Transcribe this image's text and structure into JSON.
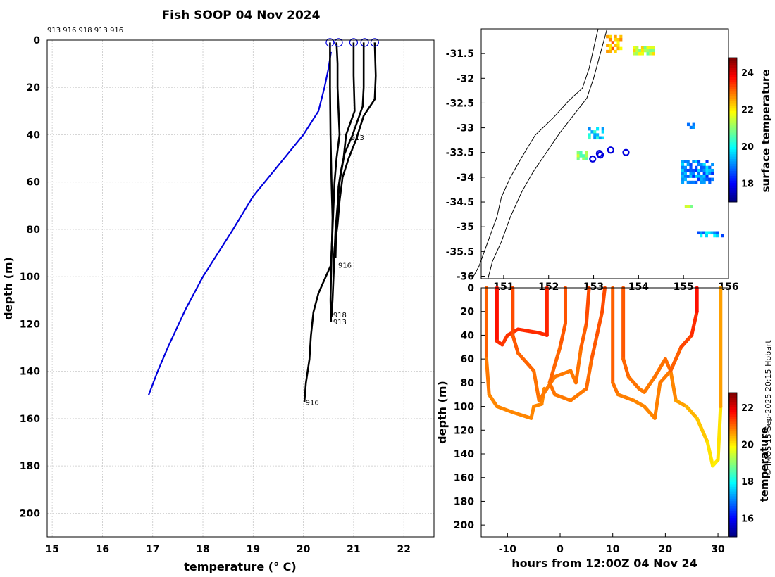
{
  "title": "Fish SOOP 04 Nov 2024",
  "credit": "© IMOS 13-Sep-2025 20:15 Hobart",
  "colors": {
    "climatology": "#0000dd",
    "profiles": "#000000",
    "marker": "#0000dd"
  },
  "chart_data": [
    {
      "type": "line",
      "name": "profile-plot",
      "xlabel": "temperature (° C)",
      "ylabel": "depth (m)",
      "xlim": [
        14.9,
        22.6
      ],
      "ylim": [
        210,
        0
      ],
      "xticks": [
        15,
        16,
        17,
        18,
        19,
        20,
        21,
        22
      ],
      "yticks": [
        0,
        20,
        40,
        60,
        80,
        100,
        120,
        140,
        160,
        180,
        200
      ],
      "grid": true,
      "top_labels": "913 916 918 913 916",
      "surface_markers": [
        20.53,
        20.7,
        21.0,
        21.22,
        21.42
      ],
      "climatology": [
        [
          20.55,
          5
        ],
        [
          20.5,
          12
        ],
        [
          20.42,
          20
        ],
        [
          20.3,
          30
        ],
        [
          20.0,
          40
        ],
        [
          19.5,
          53
        ],
        [
          19.0,
          66
        ],
        [
          18.6,
          80
        ],
        [
          18.3,
          90
        ],
        [
          18.0,
          100
        ],
        [
          17.65,
          114
        ],
        [
          17.3,
          130
        ],
        [
          17.1,
          140
        ],
        [
          16.92,
          150
        ]
      ],
      "series": [
        {
          "name": "913",
          "values": [
            [
              20.66,
              1
            ],
            [
              20.68,
              10
            ],
            [
              20.68,
              20
            ],
            [
              20.7,
              30
            ],
            [
              20.72,
              40
            ],
            [
              20.66,
              50
            ],
            [
              20.62,
              60
            ],
            [
              20.6,
              70
            ],
            [
              20.58,
              80
            ],
            [
              20.56,
              90
            ],
            [
              20.55,
              100
            ],
            [
              20.54,
              110
            ],
            [
              20.55,
              119
            ]
          ]
        },
        {
          "name": "916",
          "values": [
            [
              20.53,
              1
            ],
            [
              20.53,
              20
            ],
            [
              20.54,
              40
            ],
            [
              20.56,
              60
            ],
            [
              20.58,
              75
            ],
            [
              20.57,
              85
            ],
            [
              20.55,
              95
            ],
            [
              20.3,
              107
            ],
            [
              20.2,
              115
            ],
            [
              20.15,
              125
            ],
            [
              20.12,
              135
            ],
            [
              20.05,
              145
            ],
            [
              20.02,
              153
            ]
          ]
        },
        {
          "name": "918",
          "values": [
            [
              21.0,
              1
            ],
            [
              21.0,
              15
            ],
            [
              21.02,
              30
            ],
            [
              20.85,
              40
            ],
            [
              20.8,
              50
            ],
            [
              20.72,
              60
            ],
            [
              20.68,
              70
            ],
            [
              20.64,
              80
            ],
            [
              20.62,
              90
            ],
            [
              20.6,
              100
            ],
            [
              20.58,
              110
            ],
            [
              20.56,
              117
            ]
          ]
        },
        {
          "name": "913b",
          "values": [
            [
              21.2,
              1
            ],
            [
              21.2,
              20
            ],
            [
              21.18,
              28
            ],
            [
              20.98,
              40
            ],
            [
              20.82,
              48
            ],
            [
              20.75,
              55
            ],
            [
              20.7,
              62
            ],
            [
              20.68,
              72
            ],
            [
              20.65,
              82
            ],
            [
              20.64,
              92
            ]
          ]
        },
        {
          "name": "916b",
          "values": [
            [
              21.42,
              1
            ],
            [
              21.44,
              15
            ],
            [
              21.42,
              25
            ],
            [
              21.2,
              32
            ],
            [
              21.05,
              42
            ],
            [
              20.9,
              50
            ],
            [
              20.78,
              58
            ],
            [
              20.72,
              68
            ],
            [
              20.68,
              78
            ],
            [
              20.62,
              88
            ],
            [
              20.6,
              95
            ]
          ]
        }
      ],
      "annotations": [
        {
          "text": "913",
          "x": 20.9,
          "y": 41
        },
        {
          "text": "916",
          "x": 20.65,
          "y": 95
        },
        {
          "text": "918",
          "x": 20.55,
          "y": 116
        },
        {
          "text": "913",
          "x": 20.55,
          "y": 119
        },
        {
          "text": "916",
          "x": 20.0,
          "y": 153
        }
      ]
    },
    {
      "type": "heatmap",
      "name": "sst-map",
      "xlabel": "",
      "ylabel": "",
      "xlim": [
        150.5,
        156.0
      ],
      "ylim": [
        -36.05,
        -31.0
      ],
      "xticks": [
        151,
        152,
        153,
        154,
        155,
        156
      ],
      "xticklabels": [
        "151",
        "152",
        "153",
        "154",
        "155",
        "156"
      ],
      "yticks": [
        -31.5,
        -32,
        -32.5,
        -33,
        -33.5,
        -34,
        -34.5,
        -35,
        -35.5,
        -36
      ],
      "yticklabels": [
        "-31.5",
        "-32",
        "-32.5",
        "-33",
        "-33.5",
        "-34",
        "-34.5",
        "-35",
        "-35.5",
        "-36"
      ],
      "colorbar_label": "surface temperature",
      "colorbar_range": [
        17,
        24.8
      ],
      "colorbar_ticks": [
        18,
        20,
        22,
        24
      ],
      "coastline": [
        [
          153.1,
          -31.0
        ],
        [
          153.0,
          -31.4
        ],
        [
          152.9,
          -31.8
        ],
        [
          152.75,
          -32.2
        ],
        [
          152.45,
          -32.45
        ],
        [
          152.1,
          -32.8
        ],
        [
          151.7,
          -33.15
        ],
        [
          151.4,
          -33.6
        ],
        [
          151.15,
          -34.0
        ],
        [
          150.95,
          -34.4
        ],
        [
          150.85,
          -34.8
        ],
        [
          150.65,
          -35.3
        ],
        [
          150.45,
          -35.8
        ],
        [
          150.3,
          -36.05
        ]
      ],
      "isobath": [
        [
          153.3,
          -31.0
        ],
        [
          153.15,
          -31.5
        ],
        [
          153.0,
          -32.0
        ],
        [
          152.85,
          -32.4
        ],
        [
          152.55,
          -32.75
        ],
        [
          152.25,
          -33.1
        ],
        [
          151.95,
          -33.5
        ],
        [
          151.65,
          -33.9
        ],
        [
          151.4,
          -34.3
        ],
        [
          151.15,
          -34.8
        ],
        [
          150.95,
          -35.3
        ],
        [
          150.75,
          -35.7
        ],
        [
          150.65,
          -36.05
        ]
      ],
      "sst_patches": [
        {
          "lon": 153.45,
          "lat": -31.3,
          "w": 0.35,
          "h": 0.35,
          "temp": 22.5
        },
        {
          "lon": 154.1,
          "lat": -31.45,
          "w": 0.45,
          "h": 0.2,
          "temp": 21.5
        },
        {
          "lon": 153.05,
          "lat": -33.1,
          "w": 0.35,
          "h": 0.22,
          "temp": 19.8
        },
        {
          "lon": 152.75,
          "lat": -33.55,
          "w": 0.25,
          "h": 0.15,
          "temp": 21.2
        },
        {
          "lon": 155.3,
          "lat": -33.9,
          "w": 0.7,
          "h": 0.5,
          "temp": 19.0
        },
        {
          "lon": 155.6,
          "lat": -35.15,
          "w": 0.6,
          "h": 0.12,
          "temp": 19.2
        },
        {
          "lon": 155.1,
          "lat": -34.6,
          "w": 0.15,
          "h": 0.08,
          "temp": 21.5
        },
        {
          "lon": 155.15,
          "lat": -32.95,
          "w": 0.15,
          "h": 0.1,
          "temp": 19.5
        }
      ],
      "stations": [
        [
          152.98,
          -33.63
        ],
        [
          153.13,
          -33.52
        ],
        [
          153.38,
          -33.45
        ],
        [
          153.72,
          -33.5
        ],
        [
          153.15,
          -33.55
        ]
      ]
    },
    {
      "type": "scatter",
      "name": "depth-time-plot",
      "xlabel": "hours from 12:00Z 04 Nov 24",
      "ylabel": "depth (m)",
      "xlim": [
        -15,
        32
      ],
      "ylim": [
        210,
        0
      ],
      "xticks": [
        -10,
        0,
        10,
        20,
        30
      ],
      "yticks": [
        0,
        20,
        40,
        60,
        80,
        100,
        120,
        140,
        160,
        180,
        200
      ],
      "colorbar_label": "temperature",
      "colorbar_range": [
        15,
        22.8
      ],
      "colorbar_ticks": [
        16,
        18,
        20,
        22
      ],
      "tracks": [
        {
          "name": "dive-1",
          "points": [
            [
              -14,
              0,
              21.2
            ],
            [
              -14,
              60,
              21
            ],
            [
              -13.5,
              90,
              20.8
            ],
            [
              -12,
              100,
              20.8
            ],
            [
              -9,
              105,
              20.8
            ],
            [
              -5.5,
              110,
              20.8
            ],
            [
              -5,
              100,
              20.8
            ],
            [
              -3.5,
              98,
              20.8
            ],
            [
              -3,
              85,
              20.8
            ]
          ]
        },
        {
          "name": "dive-2",
          "points": [
            [
              -12,
              0,
              21.8
            ],
            [
              -12,
              45,
              21.6
            ],
            [
              -11,
              48,
              21.4
            ],
            [
              -10,
              40,
              21.4
            ],
            [
              -8,
              35,
              21.5
            ],
            [
              -4,
              38,
              21.5
            ],
            [
              -2.5,
              40,
              21.5
            ],
            [
              -2.5,
              0,
              21.6
            ]
          ]
        },
        {
          "name": "dive-3",
          "points": [
            [
              -9,
              0,
              21.3
            ],
            [
              -9,
              40,
              21.2
            ],
            [
              -8,
              55,
              21.1
            ],
            [
              -5,
              70,
              21
            ],
            [
              -4,
              95,
              20.9
            ],
            [
              -1,
              75,
              20.9
            ],
            [
              2,
              70,
              20.9
            ],
            [
              3,
              80,
              20.9
            ],
            [
              4,
              50,
              21
            ],
            [
              5,
              30,
              21.2
            ],
            [
              5.5,
              0,
              21.3
            ]
          ]
        },
        {
          "name": "dive-4",
          "points": [
            [
              1,
              0,
              21.2
            ],
            [
              1,
              30,
              21.2
            ],
            [
              0,
              50,
              21.1
            ],
            [
              -2,
              80,
              21
            ],
            [
              -1,
              90,
              20.9
            ],
            [
              2,
              95,
              20.9
            ],
            [
              5,
              85,
              20.9
            ],
            [
              6,
              60,
              21.1
            ],
            [
              7,
              40,
              21.2
            ],
            [
              8,
              20,
              21.2
            ],
            [
              8.5,
              0,
              21.3
            ]
          ]
        },
        {
          "name": "dive-5",
          "points": [
            [
              10,
              0,
              21.2
            ],
            [
              10,
              80,
              21
            ],
            [
              11,
              90,
              20.9
            ],
            [
              14,
              95,
              20.8
            ],
            [
              16,
              100,
              20.8
            ],
            [
              18,
              110,
              20.8
            ],
            [
              19,
              80,
              20.9
            ],
            [
              21,
              70,
              20.9
            ],
            [
              22,
              95,
              20.7
            ],
            [
              24,
              100,
              20.5
            ],
            [
              26,
              110,
              20.4
            ],
            [
              28,
              130,
              20.2
            ],
            [
              29,
              150,
              20.0
            ],
            [
              30,
              145,
              20.0
            ],
            [
              30.5,
              100,
              20.2
            ],
            [
              30.5,
              0,
              21.0
            ]
          ]
        },
        {
          "name": "dive-6",
          "points": [
            [
              12,
              0,
              21.2
            ],
            [
              12,
              60,
              21.1
            ],
            [
              13,
              75,
              21
            ],
            [
              15,
              85,
              20.9
            ],
            [
              16,
              88,
              20.9
            ],
            [
              18,
              75,
              20.9
            ],
            [
              20,
              60,
              21
            ],
            [
              21,
              70,
              21
            ],
            [
              23,
              50,
              21.2
            ],
            [
              25,
              40,
              21.4
            ],
            [
              26,
              20,
              21.6
            ],
            [
              26,
              0,
              21.8
            ]
          ]
        }
      ]
    }
  ]
}
